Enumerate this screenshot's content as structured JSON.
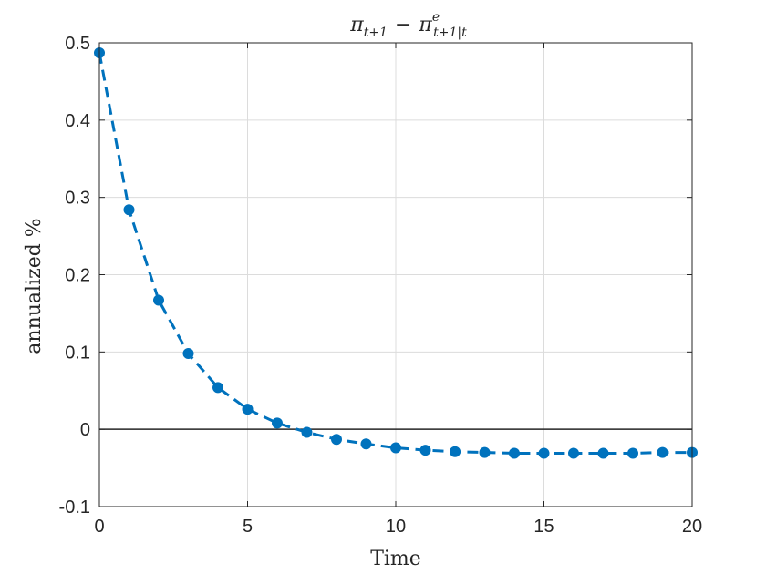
{
  "chart_data": {
    "type": "line",
    "title": {
      "left_base": "π",
      "left_sub": "t+1",
      "minus": "−",
      "right_base": "π",
      "right_sup": "e",
      "right_sub": "t+1|t"
    },
    "xlabel": "Time",
    "ylabel": "annualized %",
    "xlim": [
      0,
      20
    ],
    "ylim": [
      -0.1,
      0.5
    ],
    "xticks": [
      0,
      5,
      10,
      15,
      20
    ],
    "xtick_labels": [
      "0",
      "5",
      "10",
      "15",
      "20"
    ],
    "yticks": [
      -0.1,
      0,
      0.1,
      0.2,
      0.3,
      0.4,
      0.5
    ],
    "ytick_labels": [
      "-0.1",
      "0",
      "0.1",
      "0.2",
      "0.3",
      "0.4",
      "0.5"
    ],
    "grid": true,
    "zero_line": true,
    "series": [
      {
        "color": "#0072BD",
        "line_style": "dashed",
        "marker": "circle",
        "x": [
          0,
          1,
          2,
          3,
          4,
          5,
          6,
          7,
          8,
          9,
          10,
          11,
          12,
          13,
          14,
          15,
          16,
          17,
          18,
          19,
          20
        ],
        "y": [
          0.487,
          0.284,
          0.167,
          0.098,
          0.054,
          0.026,
          0.008,
          -0.004,
          -0.013,
          -0.019,
          -0.024,
          -0.027,
          -0.029,
          -0.03,
          -0.031,
          -0.031,
          -0.031,
          -0.031,
          -0.031,
          -0.03,
          -0.03
        ]
      }
    ]
  }
}
